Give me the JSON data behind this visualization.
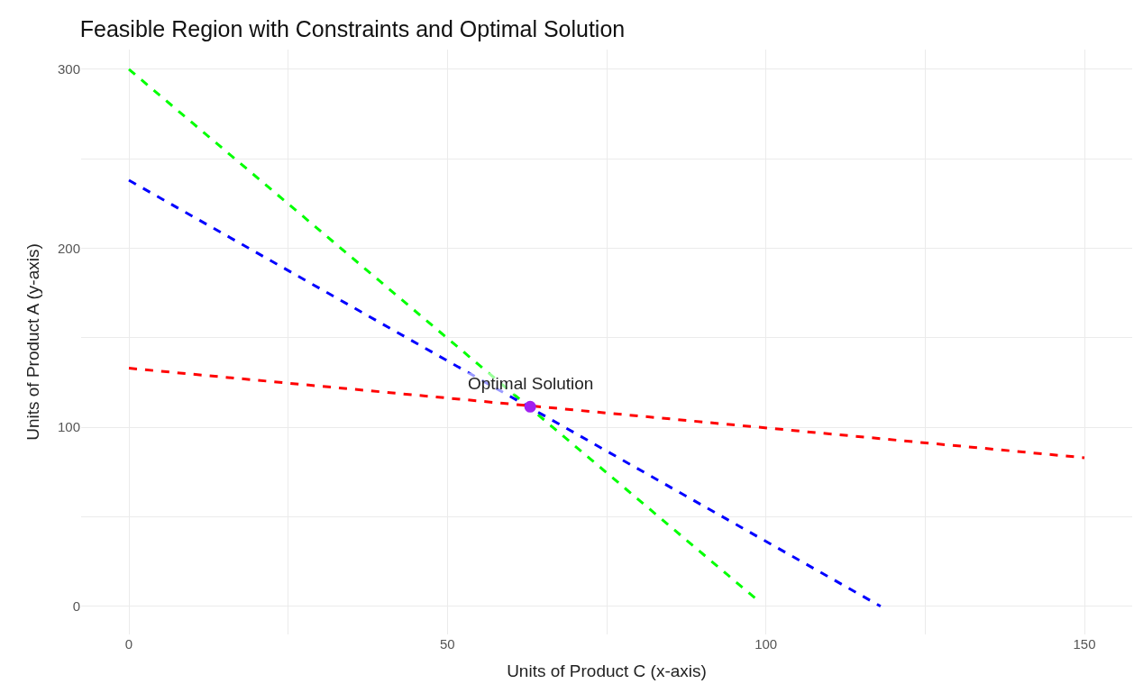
{
  "chart_data": {
    "type": "line",
    "title": "Feasible Region with Constraints and Optimal Solution",
    "xlabel": "Units of Product C (x-axis)",
    "ylabel": "Units of Product A (y-axis)",
    "series": [
      {
        "color": "#00ff00",
        "x": [
          0,
          98.5
        ],
        "values": [
          300,
          4
        ],
        "line_style": "dashed",
        "marker": "none"
      },
      {
        "color": "#0000ff",
        "x": [
          0,
          118
        ],
        "values": [
          238,
          0
        ],
        "line_style": "dashed",
        "marker": "none"
      },
      {
        "color": "#ff0000",
        "x": [
          0,
          150
        ],
        "values": [
          133,
          83
        ],
        "line_style": "dashed",
        "marker": "none"
      },
      {
        "type": "scatter",
        "color": "#a020f0",
        "x": [
          63
        ],
        "values": [
          111.5
        ],
        "marker": "circle"
      }
    ],
    "annotations": [
      {
        "text": "Optimal Solution",
        "x": 63,
        "y": 111.5
      }
    ],
    "xlim": [
      -7.5,
      157.5
    ],
    "ylim": [
      -15.7,
      311
    ],
    "xticks": [
      0,
      {
        "value": 25,
        "label": null
      },
      50,
      {
        "value": 75,
        "label": null
      },
      100,
      {
        "value": 125,
        "label": null
      },
      150
    ],
    "yticks": [
      0,
      {
        "value": 50,
        "label": null
      },
      100,
      {
        "value": 150,
        "label": null
      },
      200,
      {
        "value": 250,
        "label": null
      },
      300
    ],
    "grid": true
  }
}
